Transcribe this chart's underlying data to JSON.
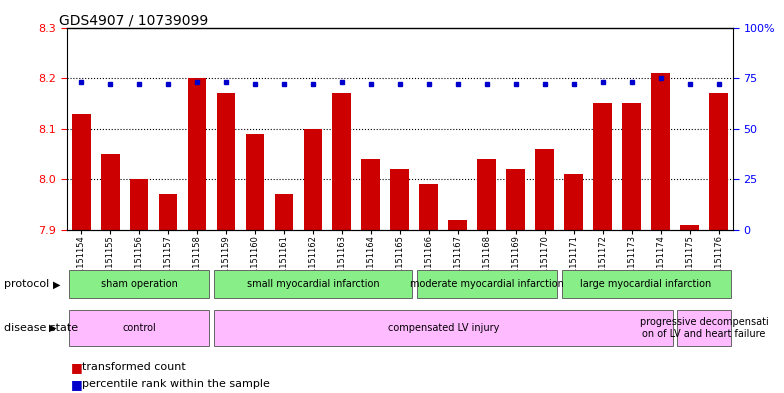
{
  "title": "GDS4907 / 10739099",
  "samples": [
    "GSM1151154",
    "GSM1151155",
    "GSM1151156",
    "GSM1151157",
    "GSM1151158",
    "GSM1151159",
    "GSM1151160",
    "GSM1151161",
    "GSM1151162",
    "GSM1151163",
    "GSM1151164",
    "GSM1151165",
    "GSM1151166",
    "GSM1151167",
    "GSM1151168",
    "GSM1151169",
    "GSM1151170",
    "GSM1151171",
    "GSM1151172",
    "GSM1151173",
    "GSM1151174",
    "GSM1151175",
    "GSM1151176"
  ],
  "bar_values": [
    8.13,
    8.05,
    8.0,
    7.97,
    8.2,
    8.17,
    8.09,
    7.97,
    8.1,
    8.17,
    8.04,
    8.02,
    7.99,
    7.92,
    8.04,
    8.02,
    8.06,
    8.01,
    8.15,
    8.15,
    8.21,
    7.91,
    8.17
  ],
  "percentile_values": [
    73,
    72,
    72,
    72,
    73,
    73,
    72,
    72,
    72,
    73,
    72,
    72,
    72,
    72,
    72,
    72,
    72,
    72,
    73,
    73,
    75,
    72,
    72
  ],
  "bar_color": "#cc0000",
  "dot_color": "#0000cc",
  "ylim_left": [
    7.9,
    8.3
  ],
  "ylim_right": [
    0,
    100
  ],
  "yticks_left": [
    7.9,
    8.0,
    8.1,
    8.2,
    8.3
  ],
  "yticks_right": [
    0,
    25,
    50,
    75,
    100
  ],
  "ytick_labels_right": [
    "0",
    "25",
    "50",
    "75",
    "100%"
  ],
  "hlines": [
    8.0,
    8.1,
    8.2
  ],
  "protocol_groups": [
    {
      "label": "sham operation",
      "start": 0,
      "end": 4,
      "color": "#88ee88"
    },
    {
      "label": "small myocardial infarction",
      "start": 5,
      "end": 11,
      "color": "#88ee88"
    },
    {
      "label": "moderate myocardial infarction",
      "start": 12,
      "end": 16,
      "color": "#88ee88"
    },
    {
      "label": "large myocardial infarction",
      "start": 17,
      "end": 22,
      "color": "#88ee88"
    }
  ],
  "disease_groups": [
    {
      "label": "control",
      "start": 0,
      "end": 4,
      "color": "#ffbbff"
    },
    {
      "label": "compensated LV injury",
      "start": 5,
      "end": 20,
      "color": "#ffbbff"
    },
    {
      "label": "progressive decompensati\non of LV and heart failure",
      "start": 21,
      "end": 22,
      "color": "#ffbbff"
    }
  ],
  "protocol_label": "protocol",
  "disease_label": "disease state",
  "legend_bar_label": "transformed count",
  "legend_dot_label": "percentile rank within the sample",
  "sample_bg_color": "#cccccc",
  "plot_bg_color": "#ffffff"
}
